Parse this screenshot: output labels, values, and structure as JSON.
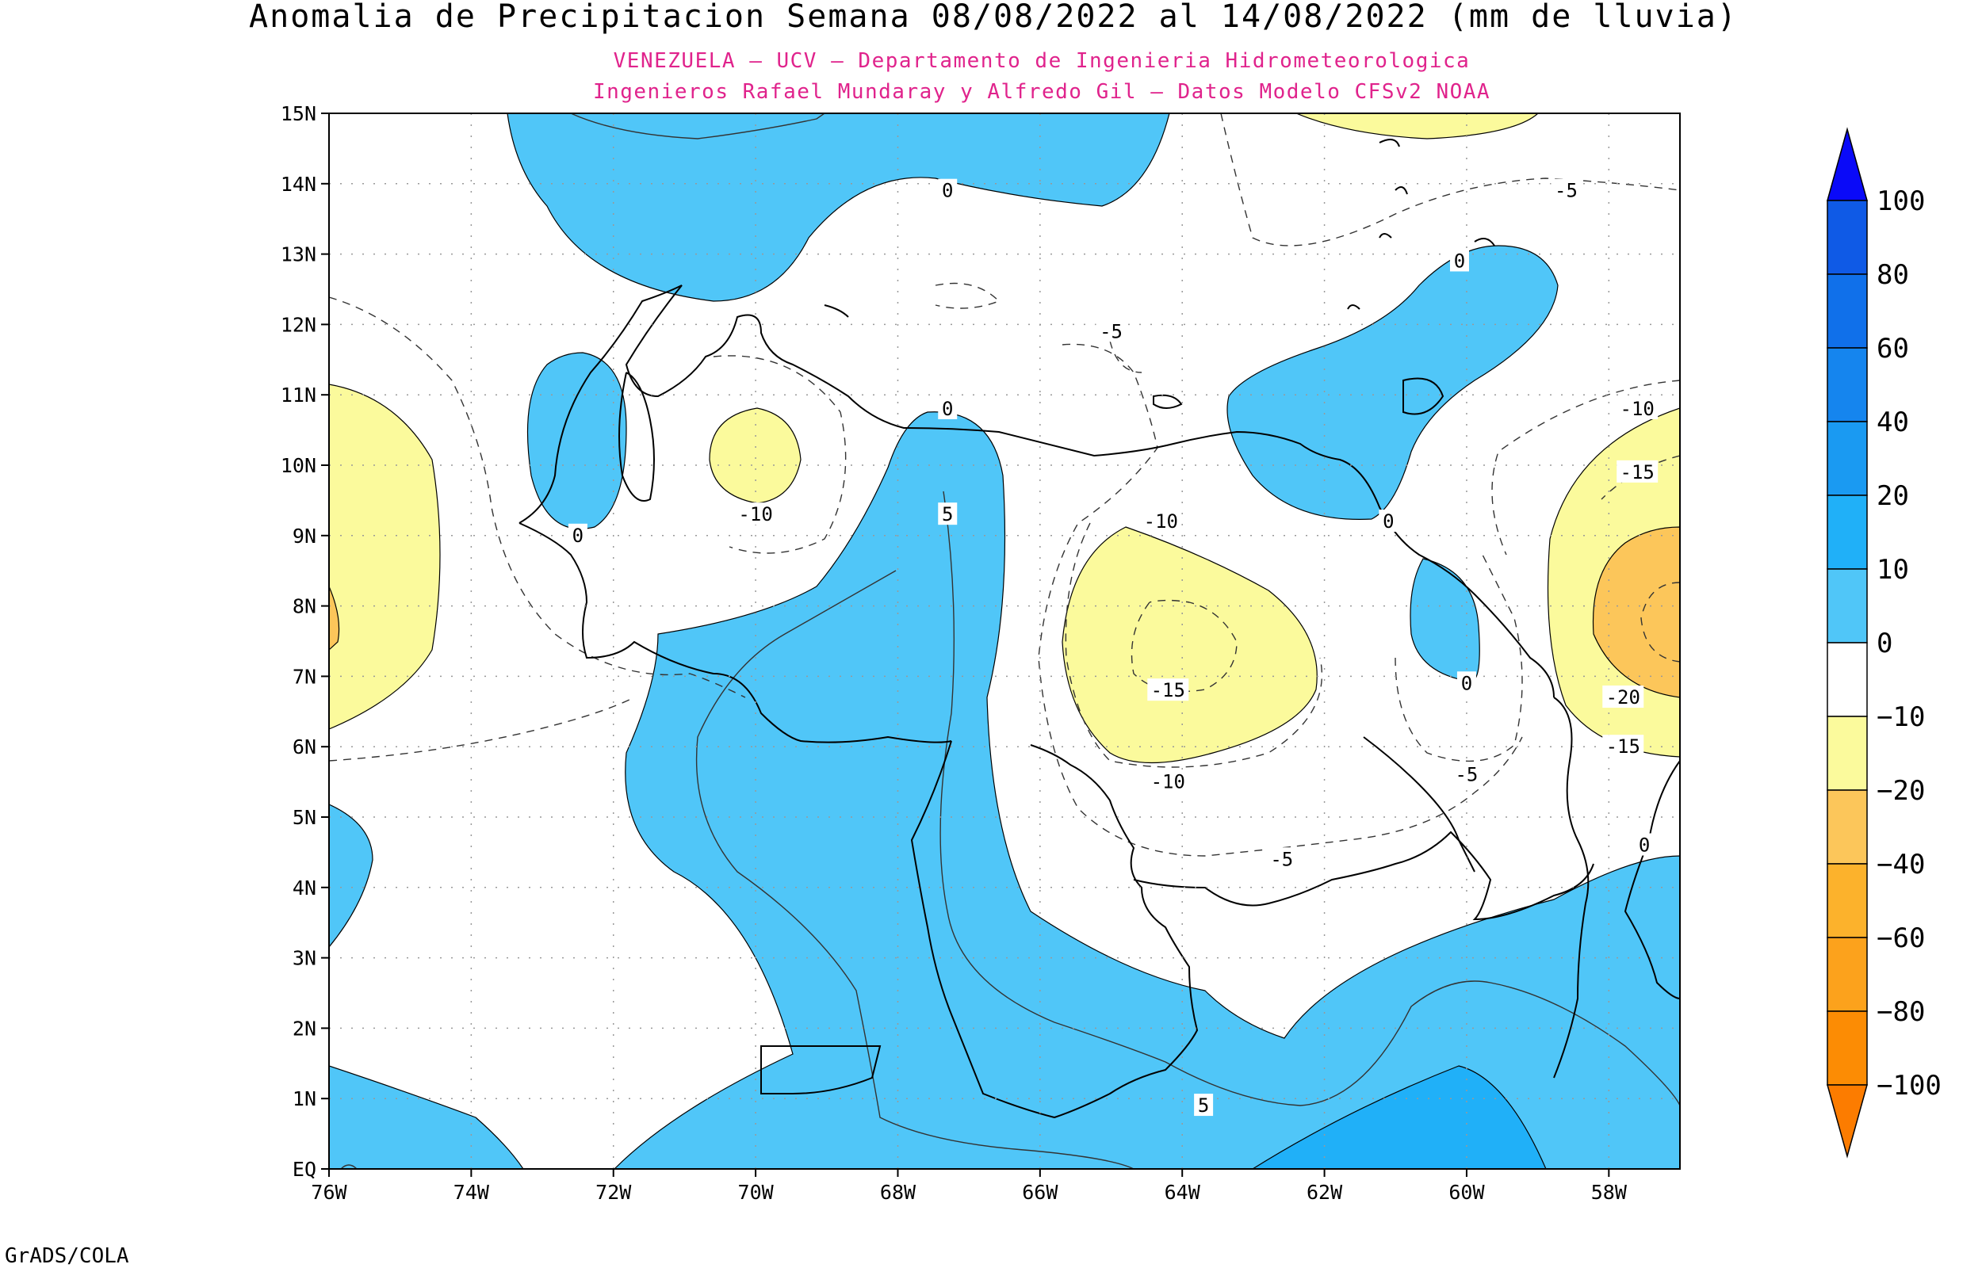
{
  "title": "Anomalia de Precipitacion Semana 08/08/2022 al 14/08/2022 (mm de lluvia)",
  "subtitle_1": "VENEZUELA — UCV — Departamento de Ingenieria Hidrometeorologica",
  "subtitle_2": "Ingenieros Rafael Mundaray y Alfredo Gil — Datos Modelo CFSv2 NOAA",
  "footer": "GrADS/COLA",
  "map": {
    "lon_range": [
      -76,
      -57
    ],
    "lat_range": [
      0,
      15
    ],
    "lon_ticks": [
      {
        "v": -76,
        "label": "76W"
      },
      {
        "v": -74,
        "label": "74W"
      },
      {
        "v": -72,
        "label": "72W"
      },
      {
        "v": -70,
        "label": "70W"
      },
      {
        "v": -68,
        "label": "68W"
      },
      {
        "v": -66,
        "label": "66W"
      },
      {
        "v": -64,
        "label": "64W"
      },
      {
        "v": -62,
        "label": "62W"
      },
      {
        "v": -60,
        "label": "60W"
      },
      {
        "v": -58,
        "label": "58W"
      }
    ],
    "lat_ticks": [
      {
        "v": 0,
        "label": "EQ"
      },
      {
        "v": 1,
        "label": "1N"
      },
      {
        "v": 2,
        "label": "2N"
      },
      {
        "v": 3,
        "label": "3N"
      },
      {
        "v": 4,
        "label": "4N"
      },
      {
        "v": 5,
        "label": "5N"
      },
      {
        "v": 6,
        "label": "6N"
      },
      {
        "v": 7,
        "label": "7N"
      },
      {
        "v": 8,
        "label": "8N"
      },
      {
        "v": 9,
        "label": "9N"
      },
      {
        "v": 10,
        "label": "10N"
      },
      {
        "v": 11,
        "label": "11N"
      },
      {
        "v": 12,
        "label": "12N"
      },
      {
        "v": 13,
        "label": "13N"
      },
      {
        "v": 14,
        "label": "14N"
      },
      {
        "v": 15,
        "label": "15N"
      }
    ],
    "contour_labels": [
      {
        "text": "0",
        "lon": -67.3,
        "lat": 13.9
      },
      {
        "text": "-5",
        "lon": -58.6,
        "lat": 13.9
      },
      {
        "text": "0",
        "lon": -60.1,
        "lat": 12.9
      },
      {
        "text": "-5",
        "lon": -65.0,
        "lat": 11.9
      },
      {
        "text": "0",
        "lon": -67.3,
        "lat": 10.8
      },
      {
        "text": "-10",
        "lon": -57.6,
        "lat": 10.8
      },
      {
        "text": "-15",
        "lon": -57.6,
        "lat": 9.9
      },
      {
        "text": "5",
        "lon": -67.3,
        "lat": 9.3
      },
      {
        "text": "-10",
        "lon": -70.0,
        "lat": 9.3
      },
      {
        "text": "0",
        "lon": -72.5,
        "lat": 9.0
      },
      {
        "text": "-10",
        "lon": -64.3,
        "lat": 9.2
      },
      {
        "text": "0",
        "lon": -61.1,
        "lat": 9.2
      },
      {
        "text": "0",
        "lon": -60.0,
        "lat": 6.9
      },
      {
        "text": "-15",
        "lon": -64.2,
        "lat": 6.8
      },
      {
        "text": "-20",
        "lon": -57.8,
        "lat": 6.7
      },
      {
        "text": "-15",
        "lon": -57.8,
        "lat": 6.0
      },
      {
        "text": "-10",
        "lon": -64.2,
        "lat": 5.5
      },
      {
        "text": "-5",
        "lon": -60.0,
        "lat": 5.6
      },
      {
        "text": "-5",
        "lon": -62.6,
        "lat": 4.4
      },
      {
        "text": "0",
        "lon": -57.5,
        "lat": 4.6
      },
      {
        "text": "5",
        "lon": -63.7,
        "lat": 0.9
      }
    ]
  },
  "colorbar": {
    "labels": [
      "100",
      "80",
      "60",
      "40",
      "20",
      "10",
      "0",
      "−10",
      "−20",
      "−40",
      "−60",
      "−80",
      "−100"
    ],
    "colors": [
      "#0a3cf0",
      "#0f5ae6",
      "#1070ea",
      "#1585ee",
      "#1a9af2",
      "#20b0f8",
      "#50c6f8",
      "#ffffff",
      "#fbfa9c",
      "#fcc65a",
      "#fcb22c",
      "#fca21c",
      "#fc8c04"
    ],
    "arrow_top": "#0a0af8",
    "arrow_bottom": "#fc7c00"
  },
  "palette": {
    "blue": "#50c6f8",
    "deep_blue": "#20b0f8",
    "yellow": "#fbfa9c",
    "orange": "#fcc65a"
  }
}
